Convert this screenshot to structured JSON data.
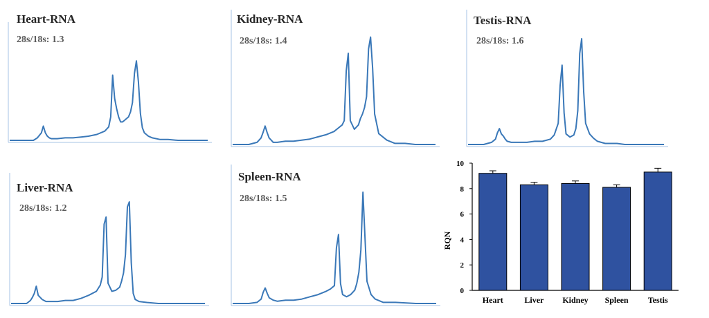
{
  "colors": {
    "trace": "#3a78b8",
    "axis": "#a6c3e6",
    "bar_fill": "#2f52a0",
    "bar_stroke": "#000000"
  },
  "panels": [
    {
      "id": "heart",
      "title": "Heart-RNA",
      "ratio": "28s/18s: 1.3"
    },
    {
      "id": "kidney",
      "title": "Kidney-RNA",
      "ratio": "28s/18s: 1.4"
    },
    {
      "id": "testis",
      "title": "Testis-RNA",
      "ratio": "28s/18s: 1.6"
    },
    {
      "id": "liver",
      "title": "Liver-RNA",
      "ratio": "28s/18s: 1.2"
    },
    {
      "id": "spleen",
      "title": "Spleen-RNA",
      "ratio": "28s/18s: 1.5"
    }
  ],
  "chart_data": [
    {
      "type": "line",
      "title": "Heart-RNA",
      "subtitle": "28s/18s: 1.3",
      "x": [
        0,
        4,
        8,
        12,
        14,
        16,
        17,
        18,
        19,
        20,
        21,
        22,
        24,
        28,
        32,
        36,
        40,
        44,
        48,
        50,
        51,
        52,
        53,
        54,
        55,
        56,
        57,
        58,
        60,
        61,
        62,
        63,
        64,
        65,
        66,
        67,
        68,
        70,
        72,
        76,
        80,
        85,
        90,
        100
      ],
      "y": [
        0,
        0,
        0,
        0,
        3,
        9,
        17,
        9,
        5,
        3,
        2,
        2,
        2,
        3,
        3,
        4,
        5,
        7,
        11,
        16,
        28,
        78,
        50,
        38,
        28,
        22,
        22,
        24,
        28,
        34,
        45,
        80,
        95,
        70,
        32,
        15,
        9,
        5,
        3,
        1,
        1,
        0,
        0,
        0
      ]
    },
    {
      "type": "line",
      "title": "Kidney-RNA",
      "subtitle": "28s/18s: 1.4",
      "x": [
        0,
        4,
        8,
        12,
        14,
        15,
        16,
        17,
        18,
        19,
        20,
        22,
        26,
        30,
        34,
        38,
        42,
        46,
        50,
        52,
        54,
        55,
        56,
        57,
        58,
        60,
        62,
        63,
        64,
        65,
        66,
        67,
        68,
        69,
        70,
        72,
        76,
        80,
        85,
        90,
        100
      ],
      "y": [
        0,
        0,
        0,
        2,
        6,
        11,
        17,
        11,
        6,
        4,
        2,
        2,
        3,
        3,
        4,
        5,
        7,
        9,
        12,
        15,
        18,
        22,
        68,
        84,
        22,
        14,
        18,
        24,
        28,
        34,
        44,
        88,
        99,
        70,
        28,
        10,
        4,
        1,
        1,
        0,
        0
      ]
    },
    {
      "type": "line",
      "title": "Testis-RNA",
      "subtitle": "28s/18s: 1.6",
      "x": [
        0,
        4,
        8,
        12,
        14,
        15,
        16,
        17,
        18,
        19,
        20,
        22,
        26,
        30,
        34,
        38,
        42,
        44,
        46,
        47,
        48,
        49,
        50,
        52,
        54,
        55,
        56,
        57,
        58,
        59,
        60,
        62,
        64,
        66,
        70,
        76,
        80,
        90,
        100
      ],
      "y": [
        0,
        0,
        0,
        2,
        5,
        11,
        15,
        10,
        8,
        5,
        3,
        2,
        2,
        2,
        3,
        3,
        5,
        9,
        20,
        56,
        75,
        30,
        10,
        7,
        9,
        15,
        32,
        86,
        100,
        50,
        20,
        10,
        6,
        3,
        1,
        1,
        0,
        0,
        0
      ]
    },
    {
      "type": "line",
      "title": "Liver-RNA",
      "subtitle": "28s/18s: 1.2",
      "x": [
        0,
        4,
        8,
        10,
        11,
        12,
        13,
        14,
        16,
        18,
        20,
        24,
        28,
        32,
        36,
        40,
        44,
        46,
        47,
        48,
        49,
        50,
        52,
        54,
        56,
        57,
        58,
        59,
        60,
        61,
        62,
        63,
        64,
        66,
        70,
        76,
        80,
        90,
        100
      ],
      "y": [
        0,
        0,
        0,
        3,
        6,
        10,
        17,
        8,
        4,
        2,
        2,
        2,
        3,
        3,
        5,
        8,
        12,
        18,
        26,
        78,
        85,
        20,
        12,
        13,
        16,
        22,
        30,
        48,
        95,
        100,
        40,
        10,
        4,
        2,
        1,
        0,
        0,
        0,
        0
      ]
    },
    {
      "type": "line",
      "title": "Spleen-RNA",
      "subtitle": "28s/18s: 1.5",
      "x": [
        0,
        4,
        8,
        12,
        14,
        15,
        16,
        17,
        18,
        20,
        22,
        26,
        30,
        34,
        38,
        42,
        46,
        48,
        50,
        51,
        52,
        53,
        54,
        56,
        58,
        60,
        61,
        62,
        63,
        64,
        65,
        66,
        68,
        70,
        74,
        80,
        90,
        100
      ],
      "y": [
        0,
        0,
        0,
        1,
        4,
        10,
        14,
        9,
        5,
        3,
        2,
        3,
        3,
        4,
        6,
        8,
        11,
        13,
        16,
        50,
        62,
        18,
        8,
        6,
        8,
        12,
        18,
        28,
        48,
        100,
        60,
        20,
        8,
        4,
        1,
        1,
        0,
        0
      ]
    },
    {
      "type": "bar",
      "categories": [
        "Heart",
        "Liver",
        "Kidney",
        "Spleen",
        "Testis"
      ],
      "values": [
        9.2,
        8.3,
        8.4,
        8.1,
        9.3
      ],
      "errors": [
        0.2,
        0.2,
        0.2,
        0.2,
        0.3
      ],
      "ylabel": "RQN",
      "ylim": [
        0,
        10
      ],
      "yticks": [
        "0",
        "2",
        "4",
        "6",
        "8",
        "10"
      ]
    }
  ]
}
